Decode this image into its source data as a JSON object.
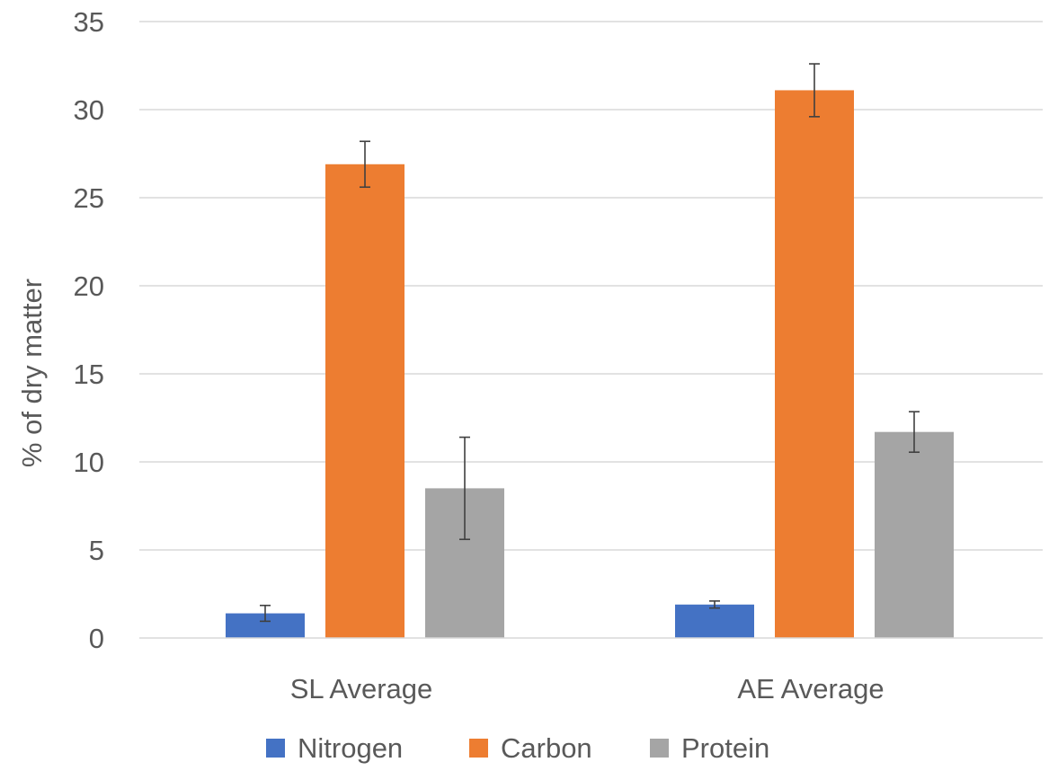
{
  "chart_data": {
    "type": "bar",
    "title": "",
    "xlabel": "",
    "ylabel": "% of dry matter",
    "ylim": [
      0,
      35
    ],
    "yticks": [
      0,
      5,
      10,
      15,
      20,
      25,
      30,
      35
    ],
    "grid": "horizontal",
    "legend_position": "bottom",
    "categories": [
      "SL Average",
      "AE Average"
    ],
    "series": [
      {
        "name": "Nitrogen",
        "color": "#4472C4",
        "values": [
          1.4,
          1.9
        ],
        "error": [
          0.45,
          0.2
        ]
      },
      {
        "name": "Carbon",
        "color": "#ED7D31",
        "values": [
          26.9,
          31.1
        ],
        "error": [
          1.3,
          1.5
        ]
      },
      {
        "name": "Protein",
        "color": "#A5A5A5",
        "values": [
          8.5,
          11.7
        ],
        "error": [
          2.9,
          1.15
        ]
      }
    ]
  }
}
